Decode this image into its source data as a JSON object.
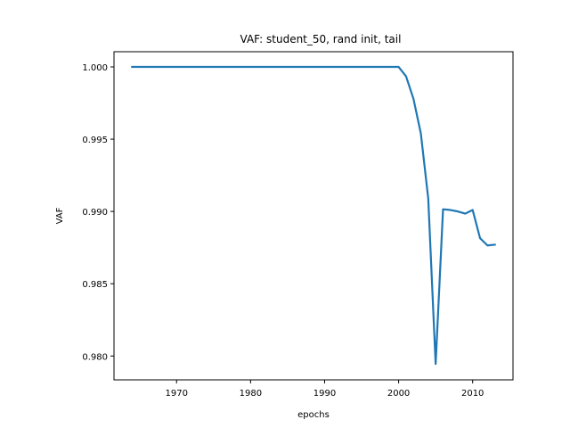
{
  "chart_data": {
    "type": "line",
    "title": "VAF: student_50, rand init, tail",
    "xlabel": "epochs",
    "ylabel": "VAF",
    "xlim": [
      1961.55,
      2015.45
    ],
    "ylim": [
      0.97835,
      1.00105
    ],
    "xticks": [
      1970,
      1980,
      1990,
      2000,
      2010
    ],
    "xtick_labels": [
      "1970",
      "1980",
      "1990",
      "2000",
      "2010"
    ],
    "yticks": [
      0.98,
      0.985,
      0.99,
      0.995,
      1.0
    ],
    "ytick_labels": [
      "0.980",
      "0.985",
      "0.990",
      "0.995",
      "1.000"
    ],
    "grid": false,
    "line_color": "#1f77b4",
    "series": [
      {
        "x": [
          1964,
          1970,
          1980,
          1990,
          2000,
          2001,
          2002,
          2003,
          2004,
          2005,
          2006,
          2007,
          2008,
          2009,
          2010,
          2011,
          2012,
          2013
        ],
        "y": [
          1.0,
          1.0,
          1.0,
          1.0,
          1.0,
          0.99935,
          0.9978,
          0.9954,
          0.9909,
          0.97945,
          0.99015,
          0.9901,
          0.99,
          0.98985,
          0.9901,
          0.98815,
          0.98765,
          0.9877
        ]
      }
    ]
  }
}
